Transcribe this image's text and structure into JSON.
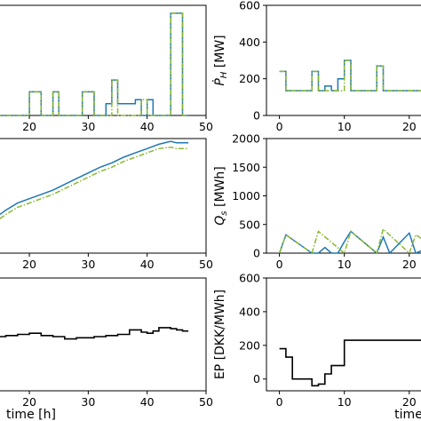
{
  "colors": {
    "blue": "#1f77b4",
    "green": "#8ab832",
    "black": "#000000",
    "axes": "#000000"
  },
  "chart_data": [
    {
      "id": "left-top",
      "type": "line",
      "xlim": [
        12,
        50
      ],
      "xticks": [
        20,
        30,
        40,
        50
      ],
      "yticks": [],
      "series": [
        {
          "color": "blue",
          "style": "solid",
          "step": true,
          "x": [
            12,
            13,
            13,
            14,
            14,
            15,
            15,
            17,
            17,
            19,
            19,
            20,
            20,
            22,
            22,
            24,
            24,
            25,
            25,
            28,
            28,
            29,
            29,
            31,
            31,
            33,
            33,
            34,
            34,
            35,
            35,
            36,
            36,
            38,
            38,
            39,
            39,
            40,
            40,
            41,
            41,
            43,
            43,
            44,
            44,
            46,
            46,
            47
          ],
          "y": [
            0,
            0,
            30,
            30,
            0,
            0,
            0,
            0,
            0,
            0,
            0,
            0,
            30,
            30,
            0,
            0,
            30,
            30,
            0,
            0,
            0,
            0,
            30,
            30,
            0,
            0,
            15,
            15,
            45,
            45,
            15,
            15,
            15,
            15,
            20,
            20,
            0,
            0,
            20,
            20,
            0,
            0,
            0,
            0,
            130,
            130,
            0,
            0
          ]
        },
        {
          "color": "green",
          "style": "dashed",
          "step": true,
          "x": [
            12,
            13,
            13,
            14,
            14,
            19,
            19,
            20,
            20,
            22,
            22,
            24,
            24,
            25,
            25,
            29,
            29,
            31,
            31,
            34,
            34,
            35,
            35,
            39,
            39,
            40,
            40,
            41,
            41,
            43,
            43,
            44,
            44,
            46,
            46,
            47
          ],
          "y": [
            0,
            0,
            30,
            30,
            0,
            0,
            0,
            0,
            30,
            30,
            0,
            0,
            30,
            30,
            0,
            0,
            30,
            30,
            0,
            0,
            45,
            45,
            0,
            0,
            20,
            20,
            0,
            0,
            0,
            0,
            0,
            0,
            130,
            130,
            0,
            0
          ]
        }
      ]
    },
    {
      "id": "right-top",
      "type": "line",
      "xlim": [
        -2,
        24
      ],
      "xticks": [
        0,
        10,
        20
      ],
      "yticks": [
        0,
        200,
        400,
        600
      ],
      "ylabel": "Ṗ_H [MW]",
      "ylim": [
        0,
        600
      ],
      "series": [
        {
          "color": "blue",
          "style": "solid",
          "step": true,
          "x": [
            0,
            1,
            1,
            5,
            5,
            6,
            6,
            7,
            7,
            8,
            8,
            9,
            9,
            10,
            10,
            11,
            11,
            15,
            15,
            16,
            16,
            17,
            17,
            24
          ],
          "y": [
            240,
            240,
            135,
            135,
            240,
            240,
            135,
            135,
            160,
            160,
            135,
            135,
            200,
            200,
            300,
            300,
            135,
            135,
            270,
            270,
            135,
            135,
            135,
            135
          ]
        },
        {
          "color": "green",
          "style": "dashed",
          "step": true,
          "x": [
            0,
            1,
            1,
            5,
            5,
            6,
            6,
            10,
            10,
            11,
            11,
            15,
            15,
            16,
            16,
            24
          ],
          "y": [
            240,
            240,
            135,
            135,
            240,
            240,
            135,
            135,
            300,
            300,
            135,
            135,
            270,
            270,
            135,
            135
          ]
        }
      ]
    },
    {
      "id": "left-mid",
      "type": "line",
      "xlim": [
        12,
        50
      ],
      "xticks": [
        20,
        30,
        40,
        50
      ],
      "yticks": [],
      "series": [
        {
          "color": "blue",
          "style": "solid",
          "step": false,
          "x": [
            12,
            14,
            16,
            18,
            20,
            22,
            24,
            26,
            28,
            30,
            32,
            34,
            36,
            38,
            40,
            42,
            44,
            45,
            46,
            47
          ],
          "y": [
            20,
            24,
            30,
            35,
            38,
            41,
            44,
            48,
            52,
            56,
            60,
            63,
            67,
            70,
            73,
            76,
            78,
            77,
            77,
            77
          ]
        },
        {
          "color": "green",
          "style": "dashed",
          "step": false,
          "x": [
            12,
            14,
            16,
            18,
            20,
            22,
            24,
            26,
            28,
            30,
            32,
            34,
            36,
            38,
            40,
            42,
            44,
            45,
            46,
            47
          ],
          "y": [
            17,
            21,
            27,
            32,
            35,
            38,
            41,
            45,
            49,
            53,
            57,
            60,
            64,
            67,
            70,
            73,
            74,
            73,
            73,
            73
          ]
        }
      ]
    },
    {
      "id": "right-mid",
      "type": "line",
      "xlim": [
        -2,
        24
      ],
      "xticks": [
        0,
        10,
        20
      ],
      "yticks": [
        0,
        500,
        1000,
        1500,
        2000
      ],
      "ylabel": "Q_s [MWh]",
      "ylim": [
        0,
        2000
      ],
      "series": [
        {
          "color": "blue",
          "style": "solid",
          "step": false,
          "x": [
            0,
            1,
            5,
            6,
            7,
            8,
            9,
            10,
            11,
            15,
            16,
            17,
            20,
            21,
            24
          ],
          "y": [
            0,
            320,
            0,
            0,
            100,
            0,
            0,
            200,
            380,
            0,
            280,
            0,
            350,
            0,
            150
          ]
        },
        {
          "color": "green",
          "style": "dashed",
          "step": false,
          "x": [
            0,
            1,
            5,
            6,
            10,
            11,
            15,
            16,
            20,
            21,
            24
          ],
          "y": [
            0,
            320,
            0,
            380,
            0,
            380,
            0,
            420,
            0,
            320,
            100
          ]
        }
      ]
    },
    {
      "id": "left-bot",
      "type": "line",
      "xlim": [
        12,
        50
      ],
      "xticks": [
        20,
        30,
        40,
        50
      ],
      "yticks": [],
      "xlabel": "time [h]",
      "series": [
        {
          "color": "black",
          "style": "solid",
          "step": true,
          "x": [
            12,
            13,
            13,
            14,
            14,
            16,
            16,
            18,
            18,
            20,
            20,
            22,
            22,
            24,
            24,
            26,
            26,
            28,
            28,
            31,
            31,
            33,
            33,
            35,
            35,
            37,
            37,
            39,
            39,
            40,
            40,
            41,
            41,
            42,
            42,
            44,
            44,
            45,
            45,
            46,
            46,
            47
          ],
          "y": [
            50,
            50,
            49,
            49,
            48,
            48,
            49,
            49,
            50,
            50,
            51,
            51,
            49,
            49,
            48,
            48,
            46,
            46,
            47,
            47,
            48,
            48,
            49,
            49,
            50,
            50,
            54,
            54,
            52,
            52,
            51,
            51,
            53,
            53,
            56,
            56,
            55,
            55,
            54,
            54,
            53,
            53
          ]
        }
      ]
    },
    {
      "id": "right-bot",
      "type": "line",
      "xlim": [
        -2,
        24
      ],
      "xticks": [
        0,
        10,
        20
      ],
      "yticks": [
        0,
        200,
        400,
        600
      ],
      "ylabel": "EP [DKK/MWh]",
      "ylim": [
        -70,
        600
      ],
      "xlabel": "time",
      "series": [
        {
          "color": "black",
          "style": "solid",
          "step": true,
          "x": [
            0,
            1,
            1,
            2,
            2,
            5,
            5,
            6,
            6,
            7,
            7,
            8,
            8,
            10,
            10,
            24
          ],
          "y": [
            180,
            180,
            130,
            130,
            0,
            0,
            -40,
            -40,
            -30,
            -30,
            30,
            30,
            80,
            80,
            230,
            230
          ]
        }
      ]
    }
  ]
}
